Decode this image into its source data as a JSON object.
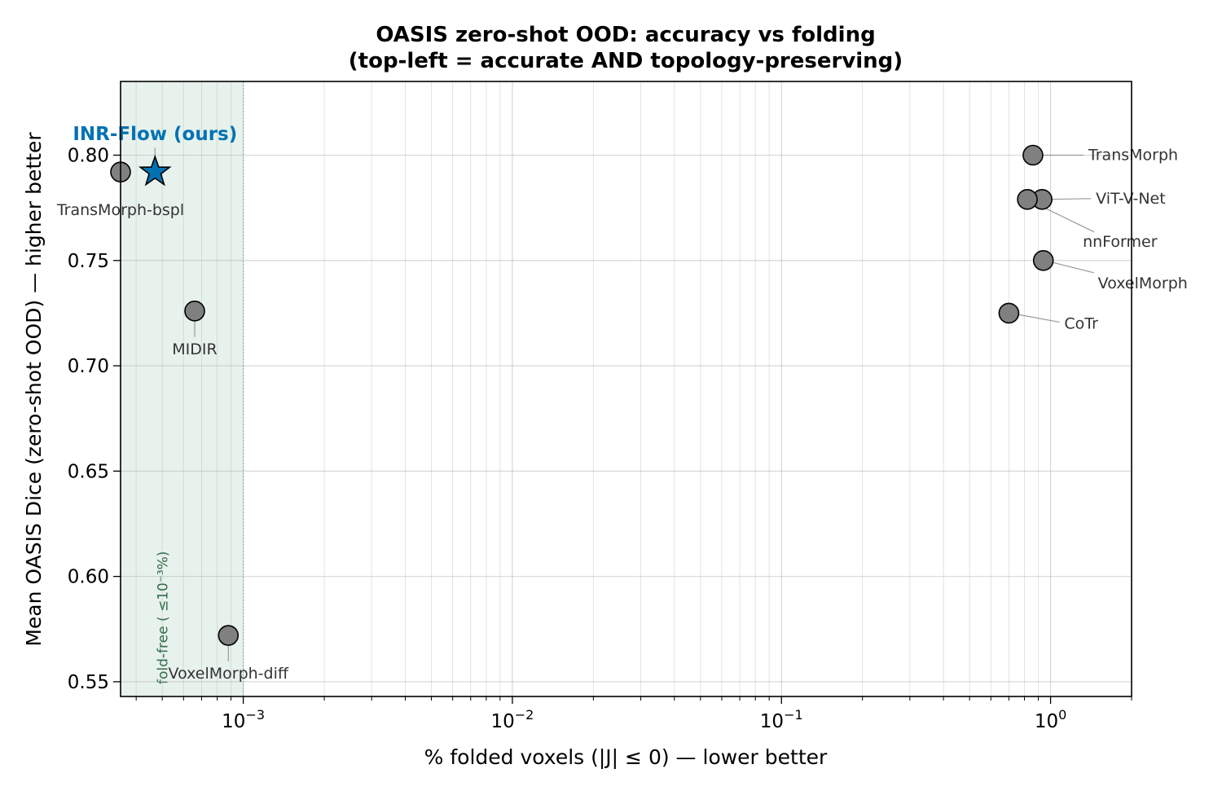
{
  "chart_data": {
    "type": "scatter",
    "title_line1": "OASIS zero-shot OOD: accuracy vs folding",
    "title_line2": "(top-left = accurate AND topology-preserving)",
    "xlabel": "% folded voxels (|J| ≤ 0) — lower better",
    "ylabel": "Mean OASIS Dice (zero-shot OOD) — higher better",
    "x_scale": "log",
    "xlim": [
      0.00035,
      2.0
    ],
    "ylim": [
      0.543,
      0.835
    ],
    "x_ticks": [
      {
        "value": 0.001,
        "base": "10",
        "exp": "−3"
      },
      {
        "value": 0.01,
        "base": "10",
        "exp": "−2"
      },
      {
        "value": 0.1,
        "base": "10",
        "exp": "−1"
      },
      {
        "value": 1,
        "base": "10",
        "exp": "0"
      }
    ],
    "y_ticks": [
      {
        "value": 0.55,
        "label": "0.55"
      },
      {
        "value": 0.6,
        "label": "0.60"
      },
      {
        "value": 0.65,
        "label": "0.65"
      },
      {
        "value": 0.7,
        "label": "0.70"
      },
      {
        "value": 0.75,
        "label": "0.75"
      },
      {
        "value": 0.8,
        "label": "0.80"
      }
    ],
    "grid": true,
    "shaded_region": {
      "x_max": 0.001,
      "label": "fold-free ( ≤10⁻³%)",
      "color": "#2e8b57",
      "text_color": "#2e6b46"
    },
    "ours": {
      "name": "INR-Flow (ours)",
      "x": 0.00047,
      "y": 0.792,
      "color": "#0072b2"
    },
    "points": [
      {
        "name": "TransMorph-bspl",
        "x": 0.00035,
        "y": 0.792
      },
      {
        "name": "MIDIR",
        "x": 0.00066,
        "y": 0.726
      },
      {
        "name": "VoxelMorph-diff",
        "x": 0.00088,
        "y": 0.572
      },
      {
        "name": "TransMorph",
        "x": 0.86,
        "y": 0.8
      },
      {
        "name": "ViT-V-Net",
        "x": 0.93,
        "y": 0.779
      },
      {
        "name": "nnFormer",
        "x": 0.82,
        "y": 0.779
      },
      {
        "name": "VoxelMorph",
        "x": 0.94,
        "y": 0.75
      },
      {
        "name": "CoTr",
        "x": 0.7,
        "y": 0.725
      }
    ],
    "point_color": "#808080"
  }
}
